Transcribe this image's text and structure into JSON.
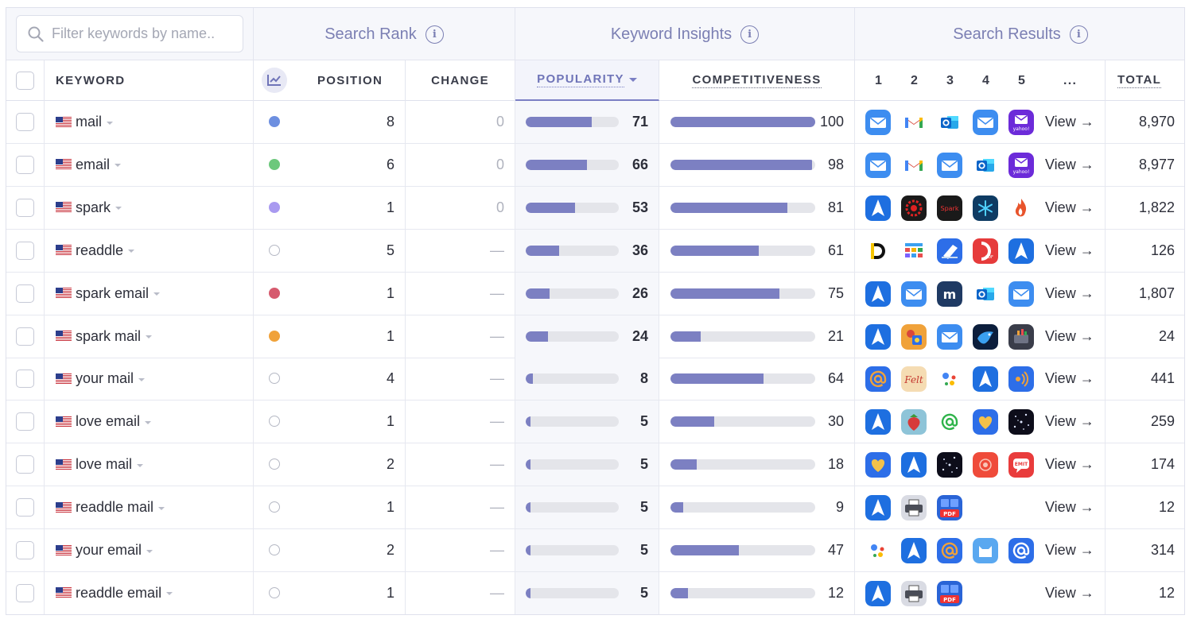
{
  "search": {
    "placeholder": "Filter keywords by name.."
  },
  "groups": {
    "search_rank": "Search Rank",
    "keyword_insights": "Keyword Insights",
    "search_results": "Search Results"
  },
  "columns": {
    "keyword": "KEYWORD",
    "position": "POSITION",
    "change": "CHANGE",
    "popularity": "POPULARITY",
    "competitiveness": "COMPETITIVENESS",
    "ranks": [
      "1",
      "2",
      "3",
      "4",
      "5",
      "..."
    ],
    "total": "TOTAL"
  },
  "view_label": "View →",
  "rows": [
    {
      "keyword": "mail",
      "dot": "#6d8fe0",
      "position": "8",
      "change": "0",
      "popularity": "71",
      "competitiveness": "100",
      "total": "8,970",
      "apps": [
        "mail-app-icon",
        "gmail-app-icon",
        "outlook-app-icon",
        "mail-app-icon",
        "yahoo-mail-app-icon"
      ]
    },
    {
      "keyword": "email",
      "dot": "#6cc87c",
      "position": "6",
      "change": "0",
      "popularity": "66",
      "competitiveness": "98",
      "total": "8,977",
      "apps": [
        "mail-app-icon",
        "gmail-app-icon",
        "mail-app-icon",
        "outlook-app-icon",
        "yahoo-mail-app-icon"
      ]
    },
    {
      "keyword": "spark",
      "dot": "#a99af0",
      "position": "1",
      "change": "0",
      "popularity": "53",
      "competitiveness": "81",
      "total": "1,822",
      "apps": [
        "spark-app-icon",
        "red-circle-app-icon",
        "spark-text-app-icon",
        "snowflake-app-icon",
        "flame-app-icon"
      ]
    },
    {
      "keyword": "readdle",
      "dot": "",
      "position": "5",
      "change": "—",
      "popularity": "36",
      "competitiveness": "61",
      "total": "126",
      "apps": [
        "documents-app-icon",
        "calendar-app-icon",
        "scanner-app-icon",
        "pdf-expert-app-icon",
        "spark-app-icon"
      ]
    },
    {
      "keyword": "spark email",
      "dot": "#d65a6e",
      "position": "1",
      "change": "—",
      "popularity": "26",
      "competitiveness": "75",
      "total": "1,807",
      "apps": [
        "spark-app-icon",
        "mail-app-icon",
        "m-app-icon",
        "outlook-app-icon",
        "mail-app-icon"
      ]
    },
    {
      "keyword": "spark mail",
      "dot": "#f0a23a",
      "position": "1",
      "change": "—",
      "popularity": "24",
      "competitiveness": "21",
      "total": "24",
      "apps": [
        "spark-app-icon",
        "game-app-icon",
        "mail-app-icon",
        "bird-app-icon",
        "toolbox-app-icon"
      ]
    },
    {
      "keyword": "your mail",
      "dot": "",
      "position": "4",
      "change": "—",
      "popularity": "8",
      "competitiveness": "64",
      "total": "441",
      "apps": [
        "at-sign-app-icon",
        "felt-app-icon",
        "assistant-app-icon",
        "spark-app-icon",
        "signal-app-icon"
      ]
    },
    {
      "keyword": "love email",
      "dot": "",
      "position": "1",
      "change": "—",
      "popularity": "5",
      "competitiveness": "30",
      "total": "259",
      "apps": [
        "spark-app-icon",
        "strawberry-app-icon",
        "green-at-app-icon",
        "heart-app-icon",
        "starry-app-icon"
      ]
    },
    {
      "keyword": "love mail",
      "dot": "",
      "position": "2",
      "change": "—",
      "popularity": "5",
      "competitiveness": "18",
      "total": "174",
      "apps": [
        "heart-app-icon",
        "spark-app-icon",
        "starry-app-icon",
        "red-pattern-app-icon",
        "chat-bubble-app-icon"
      ]
    },
    {
      "keyword": "readdle mail",
      "dot": "",
      "position": "1",
      "change": "—",
      "popularity": "5",
      "competitiveness": "9",
      "total": "12",
      "apps": [
        "spark-app-icon",
        "printer-app-icon",
        "pdf-app-icon"
      ]
    },
    {
      "keyword": "your email",
      "dot": "",
      "position": "2",
      "change": "—",
      "popularity": "5",
      "competitiveness": "47",
      "total": "314",
      "apps": [
        "assistant-app-icon",
        "spark-app-icon",
        "at-sign-app-icon",
        "cat-app-icon",
        "blue-at-app-icon"
      ]
    },
    {
      "keyword": "readdle email",
      "dot": "",
      "position": "1",
      "change": "—",
      "popularity": "5",
      "competitiveness": "12",
      "total": "12",
      "apps": [
        "spark-app-icon",
        "printer-app-icon",
        "pdf-app-icon"
      ]
    }
  ]
}
